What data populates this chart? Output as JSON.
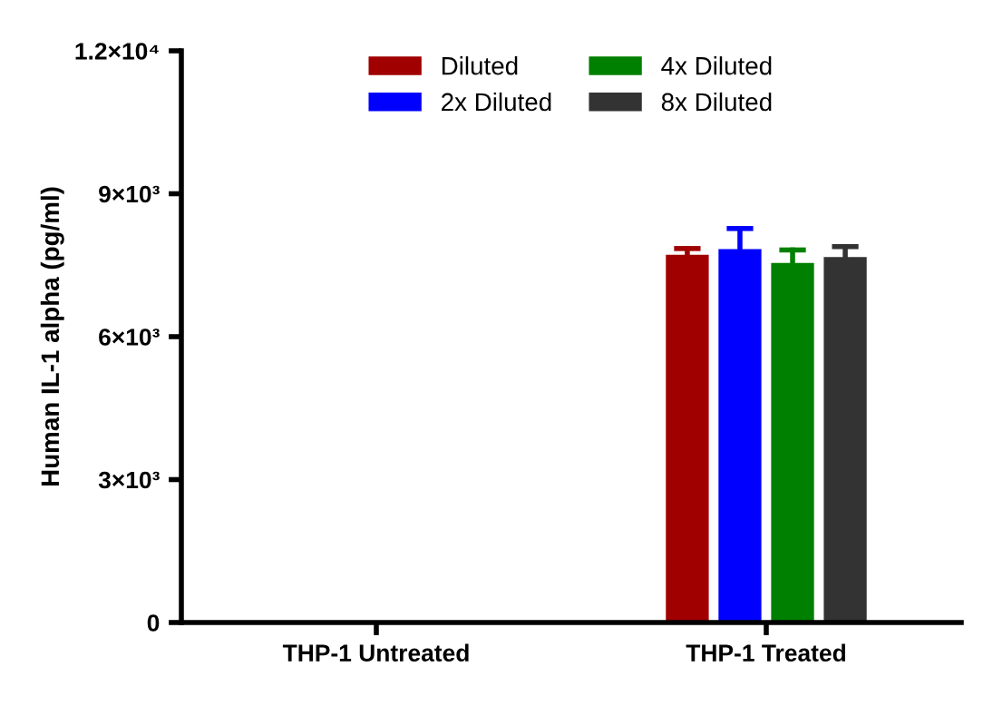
{
  "chart_data": {
    "type": "bar",
    "ylabel": "Human IL-1 alpha (pg/ml)",
    "categories": [
      "THP-1 Untreated",
      "THP-1 Treated"
    ],
    "series": [
      {
        "name": "Diluted",
        "color": "#a00000",
        "values": [
          0,
          7720
        ],
        "errors": [
          null,
          [
            7720,
            7850
          ]
        ]
      },
      {
        "name": "2x Diluted",
        "color": "#0000ff",
        "values": [
          0,
          7840
        ],
        "errors": [
          null,
          [
            7840,
            8270
          ]
        ]
      },
      {
        "name": "4x Diluted",
        "color": "#008000",
        "values": [
          0,
          7550
        ],
        "errors": [
          null,
          [
            7550,
            7820
          ]
        ]
      },
      {
        "name": "8x Diluted",
        "color": "#333333",
        "values": [
          0,
          7670
        ],
        "errors": [
          null,
          [
            7670,
            7890
          ]
        ]
      }
    ],
    "ylim": [
      0,
      12000
    ],
    "yticks": [
      0,
      {
        "value": 3000,
        "label": "3×10³"
      },
      {
        "value": 6000,
        "label": "6×10³"
      },
      {
        "value": 9000,
        "label": "9×10³"
      },
      {
        "value": 12000,
        "label": "1.2×10⁴"
      }
    ],
    "grid": false,
    "legend": "top"
  }
}
